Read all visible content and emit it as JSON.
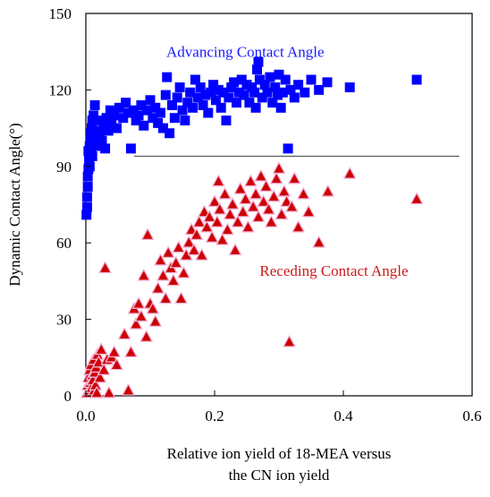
{
  "chart_data": {
    "type": "scatter",
    "xlabel_lines": [
      "Relative ion yield of 18-MEA versus",
      "the CN ion yield"
    ],
    "ylabel": "Dynamic Contact Angle(°)",
    "xlim": [
      0,
      0.6
    ],
    "ylim": [
      0,
      150
    ],
    "x_ticks": [
      0,
      0.2,
      0.4,
      0.6
    ],
    "x_tick_labels": [
      "0.0",
      "0.2",
      "0.4",
      "0.6"
    ],
    "y_ticks": [
      0,
      30,
      60,
      90,
      120,
      150
    ],
    "y_tick_labels": [
      "0",
      "30",
      "60",
      "90",
      "120",
      "150"
    ],
    "grid": false,
    "reference_line": {
      "y": 94,
      "x_start": 0.075,
      "x_end": 0.58
    },
    "annotations": [
      {
        "text": "Advancing Contact Angle",
        "x": 0.125,
        "y": 133,
        "color": "#1a1aff"
      },
      {
        "text": "Receding Contact Angle",
        "x": 0.27,
        "y": 47,
        "color": "#cc1a1a"
      }
    ],
    "series": [
      {
        "marker": "square",
        "color": "#0000ff",
        "points": [
          [
            0.001,
            71
          ],
          [
            0.002,
            74
          ],
          [
            0.002,
            78
          ],
          [
            0.003,
            82
          ],
          [
            0.003,
            86
          ],
          [
            0.004,
            89
          ],
          [
            0.005,
            92
          ],
          [
            0.005,
            95
          ],
          [
            0.006,
            98
          ],
          [
            0.007,
            100
          ],
          [
            0.008,
            103
          ],
          [
            0.009,
            105
          ],
          [
            0.01,
            108
          ],
          [
            0.012,
            110
          ],
          [
            0.014,
            114
          ],
          [
            0.004,
            96
          ],
          [
            0.006,
            90
          ],
          [
            0.008,
            97
          ],
          [
            0.01,
            94
          ],
          [
            0.013,
            101
          ],
          [
            0.016,
            98
          ],
          [
            0.018,
            104
          ],
          [
            0.02,
            108
          ],
          [
            0.022,
            103
          ],
          [
            0.025,
            100
          ],
          [
            0.028,
            106
          ],
          [
            0.03,
            97
          ],
          [
            0.032,
            109
          ],
          [
            0.035,
            104
          ],
          [
            0.038,
            112
          ],
          [
            0.04,
            107
          ],
          [
            0.044,
            110
          ],
          [
            0.048,
            105
          ],
          [
            0.052,
            113
          ],
          [
            0.058,
            109
          ],
          [
            0.062,
            115
          ],
          [
            0.066,
            111
          ],
          [
            0.07,
            97
          ],
          [
            0.074,
            112
          ],
          [
            0.078,
            108
          ],
          [
            0.082,
            110
          ],
          [
            0.086,
            114
          ],
          [
            0.09,
            106
          ],
          [
            0.095,
            112
          ],
          [
            0.1,
            116
          ],
          [
            0.104,
            109
          ],
          [
            0.108,
            113
          ],
          [
            0.112,
            107
          ],
          [
            0.116,
            111
          ],
          [
            0.12,
            105
          ],
          [
            0.124,
            118
          ],
          [
            0.126,
            125
          ],
          [
            0.13,
            103
          ],
          [
            0.134,
            114
          ],
          [
            0.138,
            109
          ],
          [
            0.142,
            117
          ],
          [
            0.146,
            121
          ],
          [
            0.15,
            112
          ],
          [
            0.154,
            108
          ],
          [
            0.158,
            115
          ],
          [
            0.162,
            119
          ],
          [
            0.166,
            113
          ],
          [
            0.17,
            124
          ],
          [
            0.174,
            117
          ],
          [
            0.178,
            121
          ],
          [
            0.182,
            114
          ],
          [
            0.186,
            118
          ],
          [
            0.19,
            111
          ],
          [
            0.194,
            119
          ],
          [
            0.198,
            122
          ],
          [
            0.202,
            116
          ],
          [
            0.206,
            120
          ],
          [
            0.21,
            113
          ],
          [
            0.214,
            119
          ],
          [
            0.218,
            108
          ],
          [
            0.222,
            117
          ],
          [
            0.226,
            121
          ],
          [
            0.23,
            123
          ],
          [
            0.234,
            115
          ],
          [
            0.238,
            119
          ],
          [
            0.242,
            124
          ],
          [
            0.246,
            118
          ],
          [
            0.25,
            122
          ],
          [
            0.254,
            115
          ],
          [
            0.258,
            121
          ],
          [
            0.262,
            119
          ],
          [
            0.264,
            113
          ],
          [
            0.266,
            128
          ],
          [
            0.268,
            131
          ],
          [
            0.27,
            124
          ],
          [
            0.274,
            117
          ],
          [
            0.278,
            122
          ],
          [
            0.282,
            119
          ],
          [
            0.286,
            125
          ],
          [
            0.29,
            115
          ],
          [
            0.294,
            121
          ],
          [
            0.298,
            118
          ],
          [
            0.3,
            126
          ],
          [
            0.303,
            113
          ],
          [
            0.306,
            119
          ],
          [
            0.31,
            124
          ],
          [
            0.314,
            97
          ],
          [
            0.318,
            120
          ],
          [
            0.324,
            117
          ],
          [
            0.33,
            122
          ],
          [
            0.34,
            119
          ],
          [
            0.35,
            124
          ],
          [
            0.362,
            120
          ],
          [
            0.375,
            123
          ],
          [
            0.41,
            121
          ],
          [
            0.514,
            124
          ]
        ]
      },
      {
        "marker": "triangle",
        "color": "#cc0000",
        "points": [
          [
            0.002,
            1
          ],
          [
            0.003,
            4
          ],
          [
            0.004,
            7
          ],
          [
            0.005,
            2
          ],
          [
            0.006,
            10
          ],
          [
            0.007,
            5
          ],
          [
            0.008,
            12
          ],
          [
            0.009,
            3
          ],
          [
            0.01,
            8
          ],
          [
            0.011,
            6
          ],
          [
            0.012,
            14
          ],
          [
            0.013,
            2
          ],
          [
            0.014,
            9
          ],
          [
            0.015,
            4
          ],
          [
            0.016,
            11
          ],
          [
            0.017,
            1
          ],
          [
            0.018,
            16
          ],
          [
            0.02,
            13
          ],
          [
            0.022,
            7
          ],
          [
            0.024,
            18
          ],
          [
            0.028,
            10
          ],
          [
            0.03,
            50
          ],
          [
            0.033,
            14
          ],
          [
            0.036,
            1
          ],
          [
            0.04,
            15
          ],
          [
            0.044,
            17
          ],
          [
            0.048,
            12
          ],
          [
            0.06,
            24
          ],
          [
            0.066,
            2
          ],
          [
            0.07,
            17
          ],
          [
            0.075,
            34
          ],
          [
            0.078,
            28
          ],
          [
            0.082,
            36
          ],
          [
            0.086,
            31
          ],
          [
            0.09,
            47
          ],
          [
            0.094,
            23
          ],
          [
            0.096,
            63
          ],
          [
            0.1,
            36
          ],
          [
            0.104,
            34
          ],
          [
            0.108,
            29
          ],
          [
            0.112,
            42
          ],
          [
            0.116,
            53
          ],
          [
            0.12,
            47
          ],
          [
            0.124,
            38
          ],
          [
            0.128,
            56
          ],
          [
            0.132,
            50
          ],
          [
            0.136,
            45
          ],
          [
            0.14,
            52
          ],
          [
            0.144,
            58
          ],
          [
            0.148,
            38
          ],
          [
            0.152,
            48
          ],
          [
            0.156,
            55
          ],
          [
            0.16,
            60
          ],
          [
            0.164,
            65
          ],
          [
            0.168,
            57
          ],
          [
            0.172,
            63
          ],
          [
            0.176,
            68
          ],
          [
            0.18,
            55
          ],
          [
            0.184,
            72
          ],
          [
            0.188,
            66
          ],
          [
            0.192,
            70
          ],
          [
            0.196,
            62
          ],
          [
            0.2,
            76
          ],
          [
            0.204,
            68
          ],
          [
            0.206,
            84
          ],
          [
            0.208,
            73
          ],
          [
            0.212,
            61
          ],
          [
            0.216,
            79
          ],
          [
            0.22,
            65
          ],
          [
            0.224,
            71
          ],
          [
            0.228,
            75
          ],
          [
            0.232,
            57
          ],
          [
            0.236,
            68
          ],
          [
            0.24,
            81
          ],
          [
            0.244,
            72
          ],
          [
            0.248,
            77
          ],
          [
            0.252,
            66
          ],
          [
            0.256,
            84
          ],
          [
            0.26,
            74
          ],
          [
            0.264,
            79
          ],
          [
            0.268,
            70
          ],
          [
            0.272,
            86
          ],
          [
            0.276,
            76
          ],
          [
            0.28,
            82
          ],
          [
            0.284,
            73
          ],
          [
            0.288,
            68
          ],
          [
            0.292,
            78
          ],
          [
            0.296,
            85
          ],
          [
            0.3,
            89
          ],
          [
            0.304,
            71
          ],
          [
            0.308,
            80
          ],
          [
            0.312,
            76
          ],
          [
            0.316,
            21
          ],
          [
            0.32,
            74
          ],
          [
            0.324,
            85
          ],
          [
            0.33,
            66
          ],
          [
            0.338,
            79
          ],
          [
            0.346,
            72
          ],
          [
            0.362,
            60
          ],
          [
            0.376,
            80
          ],
          [
            0.41,
            87
          ],
          [
            0.514,
            77
          ]
        ]
      }
    ]
  }
}
